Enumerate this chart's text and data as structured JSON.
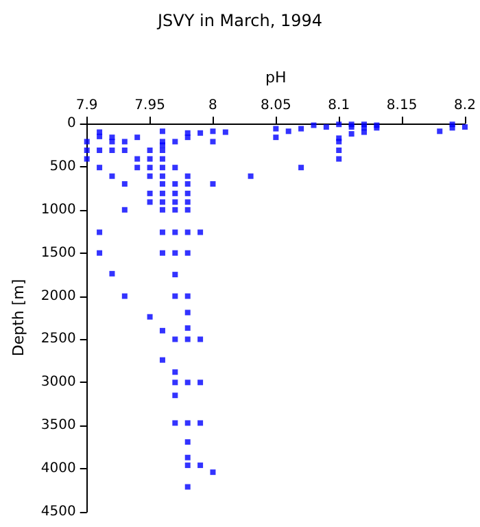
{
  "chart_data": {
    "type": "scatter",
    "title": "JSVY in March, 1994",
    "xlabel": "pH",
    "ylabel": "Depth [m]",
    "x": [
      7.9,
      7.9,
      7.9,
      7.91,
      7.91,
      7.91,
      7.91,
      7.91,
      7.91,
      7.92,
      7.92,
      7.92,
      7.92,
      7.92,
      7.93,
      7.93,
      7.93,
      7.93,
      7.93,
      7.94,
      7.94,
      7.94,
      7.95,
      7.95,
      7.95,
      7.95,
      7.95,
      7.95,
      7.95,
      7.96,
      7.96,
      7.96,
      7.96,
      7.96,
      7.96,
      7.96,
      7.96,
      7.96,
      7.96,
      7.96,
      7.96,
      7.96,
      7.96,
      7.96,
      7.97,
      7.97,
      7.97,
      7.97,
      7.97,
      7.97,
      7.97,
      7.97,
      7.97,
      7.97,
      7.97,
      7.97,
      7.97,
      7.97,
      7.97,
      7.98,
      7.98,
      7.98,
      7.98,
      7.98,
      7.98,
      7.98,
      7.98,
      7.98,
      7.98,
      7.98,
      7.98,
      7.98,
      7.98,
      7.98,
      7.98,
      7.98,
      7.98,
      7.98,
      7.99,
      7.99,
      7.99,
      7.99,
      7.99,
      7.99,
      8.0,
      8.0,
      8.0,
      8.0,
      8.01,
      8.03,
      8.05,
      8.05,
      8.06,
      8.07,
      8.07,
      8.08,
      8.09,
      8.1,
      8.1,
      8.1,
      8.1,
      8.1,
      8.11,
      8.11,
      8.11,
      8.12,
      8.12,
      8.12,
      8.13,
      8.13,
      8.18,
      8.19,
      8.19,
      8.2
    ],
    "values": [
      210,
      310,
      410,
      100,
      150,
      310,
      510,
      1260,
      1500,
      160,
      210,
      310,
      610,
      1740,
      210,
      310,
      700,
      1000,
      2000,
      160,
      410,
      510,
      310,
      410,
      510,
      610,
      810,
      910,
      2240,
      90,
      210,
      250,
      310,
      410,
      510,
      610,
      700,
      810,
      910,
      1000,
      1260,
      1500,
      2400,
      2740,
      210,
      510,
      700,
      810,
      910,
      1000,
      1260,
      1500,
      1750,
      2000,
      2500,
      2880,
      3000,
      3150,
      3470,
      110,
      160,
      610,
      700,
      810,
      910,
      1000,
      1260,
      1500,
      2000,
      2190,
      2370,
      2500,
      3000,
      3470,
      3690,
      3870,
      3960,
      4210,
      110,
      1260,
      2500,
      3000,
      3470,
      3960,
      90,
      210,
      700,
      4040,
      100,
      610,
      60,
      160,
      90,
      60,
      510,
      20,
      40,
      10,
      170,
      210,
      310,
      410,
      10,
      40,
      120,
      10,
      50,
      100,
      20,
      50,
      90,
      10,
      50,
      40
    ],
    "color": "#0000ff",
    "marker": "square",
    "xlim": [
      7.9,
      8.2
    ],
    "xticks": [
      7.9,
      7.95,
      8,
      8.05,
      8.1,
      8.15,
      8.2
    ],
    "ylim": [
      4500,
      0
    ],
    "yticks": [
      0,
      500,
      1000,
      1500,
      2000,
      2500,
      3000,
      3500,
      4000,
      4500
    ],
    "grid": false
  }
}
